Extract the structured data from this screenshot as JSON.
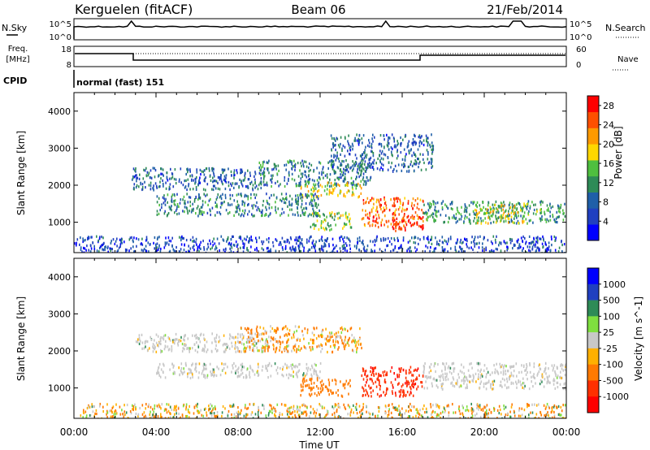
{
  "header": {
    "station": "Kerguelen (fitACF)",
    "beam": "Beam 06",
    "date": "21/Feb/2014"
  },
  "top_panels": {
    "nsky_label": "N.Sky",
    "nsky_tick_high": "10^5",
    "nsky_tick_low": "10^0",
    "nsearch_label": "N.Search",
    "nsearch_tick_high": "10^5",
    "nsearch_tick_low": "10^0",
    "freq_label_1": "Freq.",
    "freq_label_2": "[MHz]",
    "freq_tick_high": "18",
    "freq_tick_low": "8",
    "nave_label": "Nave",
    "nave_tick_high": "60",
    "nave_tick_low": "0",
    "cpid_label": "CPID",
    "cpid_value": "normal (fast) 151"
  },
  "chart_data": [
    {
      "type": "heatmap",
      "name": "power",
      "ylabel": "Slant Range [km]",
      "ylim": [
        180,
        4500
      ],
      "xlim": [
        0,
        24
      ],
      "yticks": [
        1000,
        2000,
        3000,
        4000
      ],
      "colorbar_label": "Power [dB]",
      "colorbar_ticks": [
        4,
        8,
        12,
        16,
        20,
        24,
        28
      ],
      "colorbar_range": [
        0,
        30
      ],
      "colors": [
        "#0000ff",
        "#2040c0",
        "#1f5fa8",
        "#2e8b57",
        "#4fbf3f",
        "#ffd700",
        "#ff9a00",
        "#ff5000",
        "#ff0000"
      ],
      "echo_regions": [
        {
          "t0": 2.8,
          "t1": 9.5,
          "r0": 1900,
          "r1": 2500,
          "level": 8
        },
        {
          "t0": 9.0,
          "t1": 14.5,
          "r0": 2000,
          "r1": 2700,
          "level": 10
        },
        {
          "t0": 11.0,
          "t1": 14.0,
          "r0": 1700,
          "r1": 2100,
          "level": 18
        },
        {
          "t0": 4.0,
          "t1": 12.0,
          "r0": 1200,
          "r1": 1800,
          "level": 10
        },
        {
          "t0": 11.5,
          "t1": 13.5,
          "r0": 800,
          "r1": 1300,
          "level": 16
        },
        {
          "t0": 14.0,
          "t1": 17.0,
          "r0": 900,
          "r1": 1700,
          "level": 24
        },
        {
          "t0": 15.5,
          "t1": 17.0,
          "r0": 800,
          "r1": 1200,
          "level": 28
        },
        {
          "t0": 17.0,
          "t1": 24.0,
          "r0": 1000,
          "r1": 1600,
          "level": 12
        },
        {
          "t0": 19.5,
          "t1": 22.0,
          "r0": 1000,
          "r1": 1500,
          "level": 18
        },
        {
          "t0": 0.0,
          "t1": 24.0,
          "r0": 180,
          "r1": 650,
          "level": 6
        },
        {
          "t0": 12.5,
          "t1": 17.5,
          "r0": 2400,
          "r1": 3400,
          "level": 8
        }
      ]
    },
    {
      "type": "heatmap",
      "name": "velocity",
      "ylabel": "Slant Range [km]",
      "xlabel": "Time UT",
      "ylim": [
        180,
        4500
      ],
      "xlim": [
        0,
        24
      ],
      "yticks": [
        1000,
        2000,
        3000,
        4000
      ],
      "xticks": [
        "00:00",
        "04:00",
        "08:00",
        "12:00",
        "16:00",
        "20:00",
        "00:00"
      ],
      "colorbar_label": "Velocity [m s^-1]",
      "colorbar_ticks": [
        "1000",
        "500",
        "100",
        "25",
        "-25",
        "-100",
        "-500",
        "-1000"
      ],
      "colors": [
        "#0000ff",
        "#2040c0",
        "#2e8b57",
        "#7fdf3f",
        "#c8c8c8",
        "#ffb000",
        "#ff7a00",
        "#ff3000",
        "#ff0000"
      ],
      "echo_regions": [
        {
          "t0": 3.0,
          "t1": 9.5,
          "r0": 2000,
          "r1": 2500,
          "level": "ground"
        },
        {
          "t0": 8.0,
          "t1": 14.0,
          "r0": 2000,
          "r1": 2700,
          "level": -100
        },
        {
          "t0": 4.0,
          "t1": 12.0,
          "r0": 1300,
          "r1": 1700,
          "level": "ground"
        },
        {
          "t0": 11.0,
          "t1": 13.5,
          "r0": 800,
          "r1": 1300,
          "level": -300
        },
        {
          "t0": 14.0,
          "t1": 17.0,
          "r0": 800,
          "r1": 1600,
          "level": -700
        },
        {
          "t0": 17.0,
          "t1": 24.0,
          "r0": 1000,
          "r1": 1700,
          "level": "ground"
        },
        {
          "t0": 0.0,
          "t1": 24.0,
          "r0": 180,
          "r1": 600,
          "level": -60
        }
      ]
    }
  ]
}
